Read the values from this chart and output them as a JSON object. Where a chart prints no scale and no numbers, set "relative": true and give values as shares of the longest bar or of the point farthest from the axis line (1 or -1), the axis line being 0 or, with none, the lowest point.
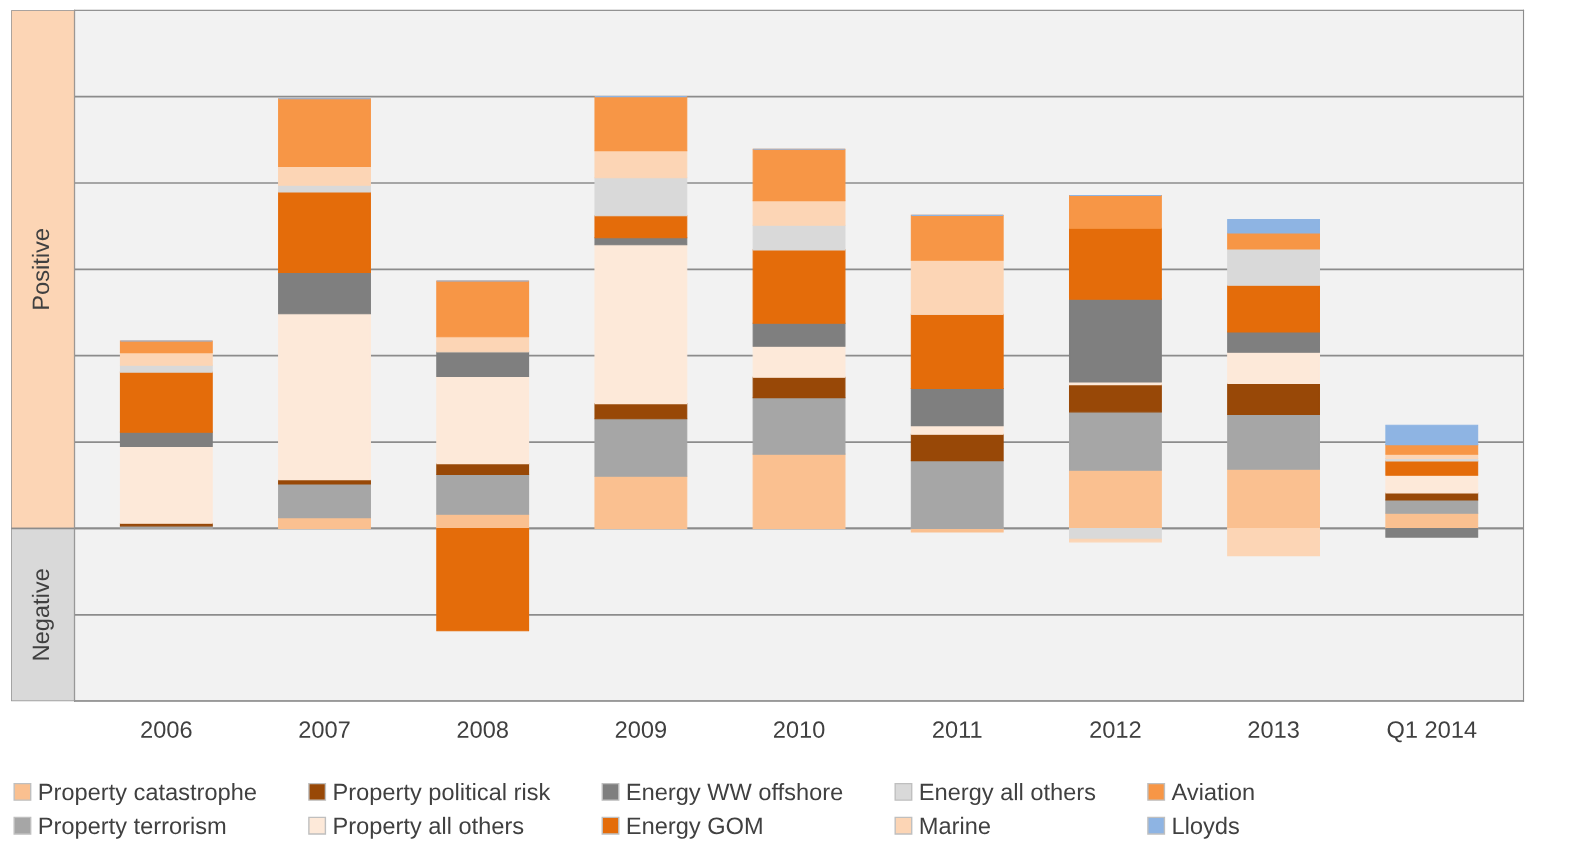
{
  "chart_data": {
    "type": "bar",
    "stacked": true,
    "relative": true,
    "grid": "y",
    "legend": "bottom",
    "categories": [
      "2006",
      "2007",
      "2008",
      "2009",
      "2010",
      "2011",
      "2012",
      "2013",
      "Q1 2014"
    ],
    "annotations": [
      "Positive",
      "Negative"
    ],
    "series": [
      {
        "name": "Property catastrophe",
        "color": "#fac090",
        "values": [
          0,
          0.025,
          0.033,
          0.121,
          0.172,
          -0.008,
          0.135,
          0.137,
          0.035
        ]
      },
      {
        "name": "Property terrorism",
        "color": "#a6a6a6",
        "values": [
          0.006,
          0.078,
          0.092,
          0.133,
          0.131,
          0.157,
          0.135,
          0.127,
          0.031
        ]
      },
      {
        "name": "Property political risk",
        "color": "#984807",
        "values": [
          0.006,
          0.01,
          0.025,
          0.035,
          0.047,
          0.061,
          0.063,
          0.072,
          0.016
        ]
      },
      {
        "name": "Property all others",
        "color": "#fde9d9",
        "values": [
          0.178,
          0.384,
          0.202,
          0.368,
          0.072,
          0.02,
          0.006,
          0.072,
          0.041
        ]
      },
      {
        "name": "Energy WW offshore",
        "color": "#7f7f7f",
        "values": [
          0.033,
          0.096,
          0.057,
          0.016,
          0.053,
          0.086,
          0.192,
          0.047,
          -0.02
        ]
      },
      {
        "name": "Energy GOM",
        "color": "#e46c0a",
        "values": [
          0.139,
          0.186,
          -0.237,
          0.051,
          0.17,
          0.172,
          0.164,
          0.108,
          0.033
        ]
      },
      {
        "name": "Energy all others",
        "color": "#d9d9d9",
        "values": [
          0.016,
          0.016,
          0,
          0.088,
          0.057,
          0,
          -0.025,
          0.084,
          0.006
        ]
      },
      {
        "name": "Marine",
        "color": "#fcd5b5",
        "values": [
          0.029,
          0.043,
          0.035,
          0.063,
          0.057,
          0.125,
          -0.006,
          -0.063,
          0.01
        ]
      },
      {
        "name": "Aviation",
        "color": "#f79646",
        "values": [
          0.027,
          0.157,
          0.129,
          0.125,
          0.119,
          0.104,
          0.076,
          0.037,
          0.022
        ]
      },
      {
        "name": "Lloyds",
        "color": "#8eb4e3",
        "values": [
          0,
          0,
          0,
          0,
          0,
          0,
          0,
          0.031,
          0.045
        ]
      }
    ]
  }
}
